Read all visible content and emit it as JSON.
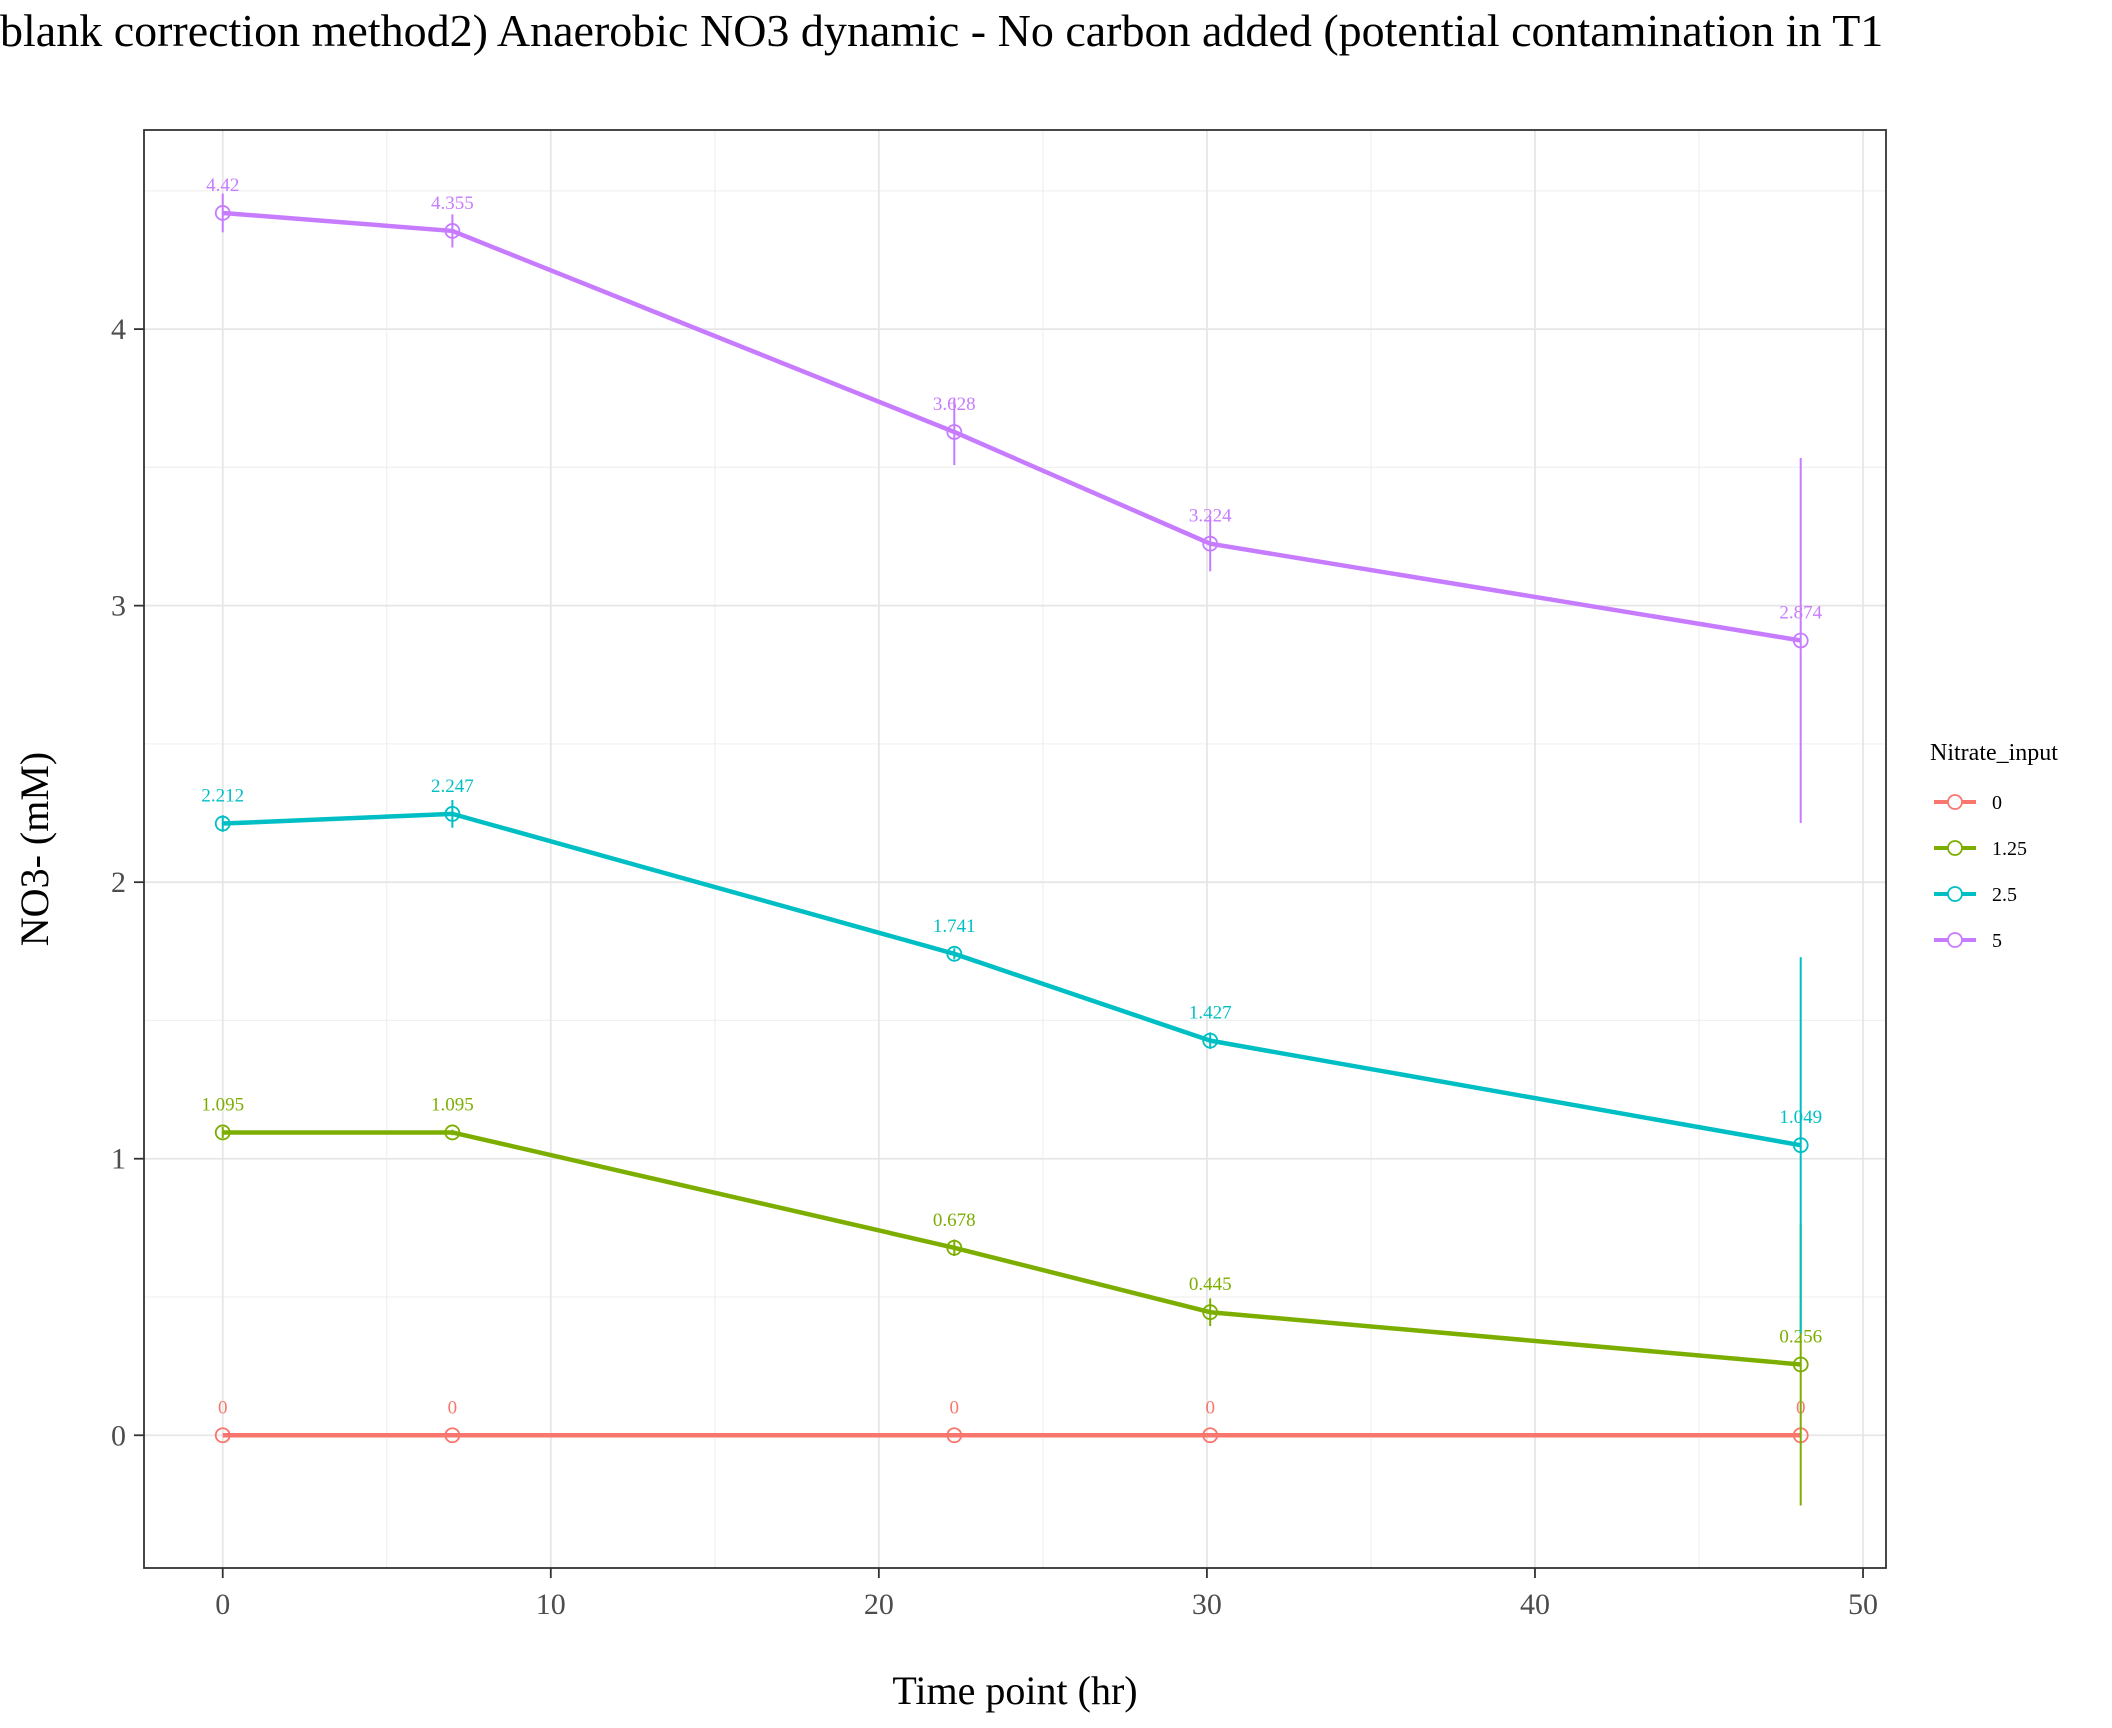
{
  "chart_data": {
    "type": "line",
    "title": "blank correction method2) Anaerobic NO3 dynamic - No carbon added (potential contamination in T1",
    "xlabel": "Time point (hr)",
    "ylabel": "NO3- (mM)",
    "xlim": [
      -2.4,
      50.7
    ],
    "ylim": [
      -0.48,
      4.72
    ],
    "x_ticks": [
      0,
      10,
      20,
      30,
      40,
      50
    ],
    "x_tick_labels": [
      "0",
      "10",
      "20",
      "30",
      "40",
      "50"
    ],
    "y_ticks": [
      0,
      1,
      2,
      3,
      4
    ],
    "y_tick_labels": [
      "0",
      "1",
      "2",
      "3",
      "4"
    ],
    "grid": true,
    "legend": {
      "title": "Nitrate_input",
      "placement": "right"
    },
    "x": [
      0,
      7,
      22.3,
      30.1,
      48.1
    ],
    "series": [
      {
        "name": "0",
        "color": "#F8766D",
        "values": [
          0,
          0,
          0,
          0,
          0
        ],
        "errors": [
          0,
          0,
          0,
          0,
          0
        ],
        "labels": [
          "0",
          "0",
          "0",
          "0",
          "0"
        ]
      },
      {
        "name": "1.25",
        "color": "#7CAE00",
        "values": [
          1.095,
          1.095,
          0.678,
          0.445,
          0.256
        ],
        "errors": [
          0.02,
          0.01,
          0.03,
          0.05,
          0.51
        ],
        "labels": [
          "1.095",
          "1.095",
          "0.678",
          "0.445",
          "0.256"
        ]
      },
      {
        "name": "2.5",
        "color": "#00BFC4",
        "values": [
          2.212,
          2.247,
          1.741,
          1.427,
          1.049
        ],
        "errors": [
          0.03,
          0.05,
          0.02,
          0.03,
          0.68
        ],
        "labels": [
          "2.212",
          "2.247",
          "1.741",
          "1.427",
          "1.049"
        ]
      },
      {
        "name": "5",
        "color": "#C77CFF",
        "values": [
          4.42,
          4.355,
          3.628,
          3.224,
          2.874
        ],
        "errors": [
          0.07,
          0.06,
          0.12,
          0.1,
          0.66
        ],
        "labels": [
          "4.42",
          "4.355",
          "3.628",
          "3.224",
          "2.874"
        ]
      }
    ]
  }
}
